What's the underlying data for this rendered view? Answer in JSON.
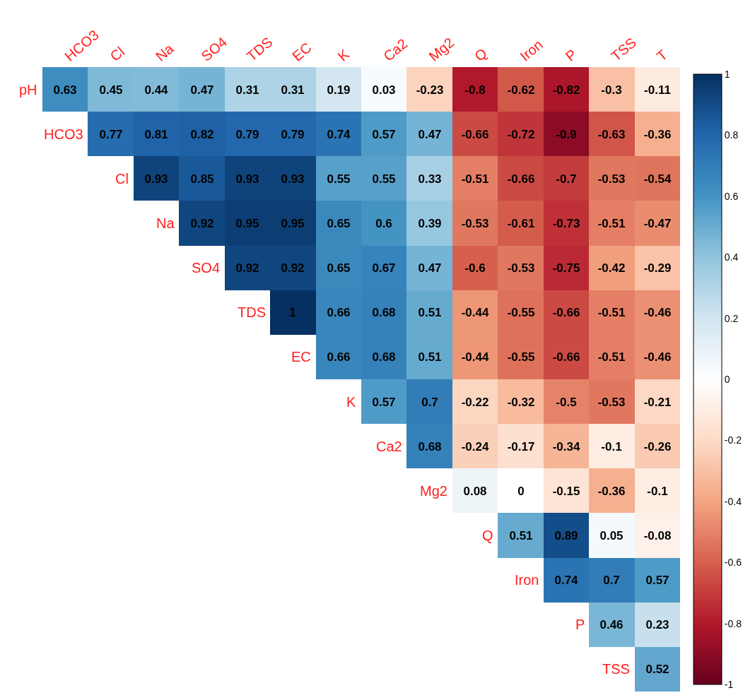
{
  "chart_data": {
    "type": "heatmap",
    "categories": [
      "HCO3",
      "Cl",
      "Na",
      "SO4",
      "TDS",
      "EC",
      "K",
      "Ca2",
      "Mg2",
      "Q",
      "Iron",
      "P",
      "TSS",
      "T"
    ],
    "y_categories": [
      "pH",
      "HCO3",
      "Cl",
      "Na",
      "SO4",
      "TDS",
      "EC",
      "K",
      "Ca2",
      "Mg2",
      "Q",
      "Iron",
      "P",
      "TSS"
    ],
    "cells": [
      [
        0.63,
        0.45,
        0.44,
        0.47,
        0.31,
        0.31,
        0.19,
        0.03,
        -0.23,
        -0.8,
        -0.62,
        -0.82,
        -0.3,
        -0.11
      ],
      [
        null,
        0.77,
        0.81,
        0.82,
        0.79,
        0.79,
        0.74,
        0.57,
        0.47,
        -0.66,
        -0.72,
        -0.9,
        -0.63,
        -0.36
      ],
      [
        null,
        null,
        0.93,
        0.85,
        0.93,
        0.93,
        0.55,
        0.55,
        0.33,
        -0.51,
        -0.66,
        -0.7,
        -0.53,
        -0.54
      ],
      [
        null,
        null,
        null,
        0.92,
        0.95,
        0.95,
        0.65,
        0.6,
        0.39,
        -0.53,
        -0.61,
        -0.73,
        -0.51,
        -0.47
      ],
      [
        null,
        null,
        null,
        null,
        0.92,
        0.92,
        0.65,
        0.67,
        0.47,
        -0.6,
        -0.53,
        -0.75,
        -0.42,
        -0.29
      ],
      [
        null,
        null,
        null,
        null,
        null,
        1,
        0.66,
        0.68,
        0.51,
        -0.44,
        -0.55,
        -0.66,
        -0.51,
        -0.46
      ],
      [
        null,
        null,
        null,
        null,
        null,
        null,
        0.66,
        0.68,
        0.51,
        -0.44,
        -0.55,
        -0.66,
        -0.51,
        -0.46
      ],
      [
        null,
        null,
        null,
        null,
        null,
        null,
        null,
        0.57,
        0.7,
        -0.22,
        -0.32,
        -0.5,
        -0.53,
        -0.21
      ],
      [
        null,
        null,
        null,
        null,
        null,
        null,
        null,
        null,
        0.68,
        -0.24,
        -0.17,
        -0.34,
        -0.1,
        -0.26
      ],
      [
        null,
        null,
        null,
        null,
        null,
        null,
        null,
        null,
        null,
        0.08,
        0,
        -0.15,
        -0.36,
        -0.1
      ],
      [
        null,
        null,
        null,
        null,
        null,
        null,
        null,
        null,
        null,
        null,
        0.51,
        0.89,
        0.05,
        -0.08
      ],
      [
        null,
        null,
        null,
        null,
        null,
        null,
        null,
        null,
        null,
        null,
        null,
        0.74,
        0.7,
        0.57
      ],
      [
        null,
        null,
        null,
        null,
        null,
        null,
        null,
        null,
        null,
        null,
        null,
        null,
        0.46,
        0.23
      ],
      [
        null,
        null,
        null,
        null,
        null,
        null,
        null,
        null,
        null,
        null,
        null,
        null,
        null,
        0.52
      ]
    ],
    "clim": [
      -1,
      1
    ],
    "cticks": [
      -1,
      -0.8,
      -0.6,
      -0.4,
      -0.2,
      0,
      0.2,
      0.4,
      0.6,
      0.8,
      1
    ],
    "data_labels": true
  }
}
